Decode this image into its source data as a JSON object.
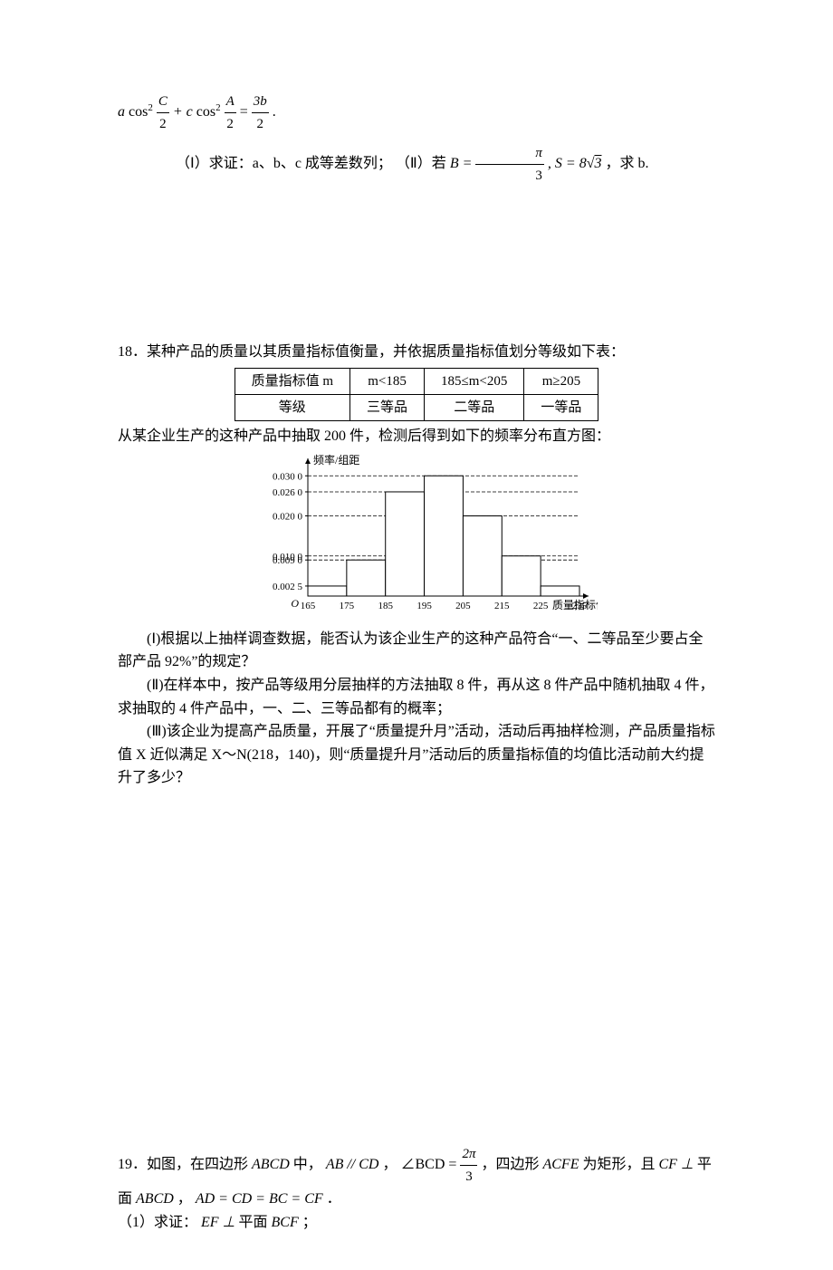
{
  "p17": {
    "formula_a": "a",
    "formula_cos2": "cos",
    "formula_sup": "2",
    "frac_C_num": "C",
    "frac_C_den": "2",
    "plus": " + c",
    "frac_A_num": "A",
    "frac_A_den": "2",
    "eq": " = ",
    "frac_3b_num": "3b",
    "frac_3b_den": "2",
    "period": " .",
    "part1": "（Ⅰ）求证：a、b、c 成等差数列；  （Ⅱ）若",
    "B_eq": " B = ",
    "pi_num": "π",
    "pi_den": "3",
    "S_eq": ", S = 8",
    "sqrt3": "3",
    "tail": " ，求 b."
  },
  "p18": {
    "stem": "18．某种产品的质量以其质量指标值衡量，并依据质量指标值划分等级如下表：",
    "table": {
      "r1c1": "质量指标值 m",
      "r1c2": "m<185",
      "r1c3": "185≤m<205",
      "r1c4": "m≥205",
      "r2c1": "等级",
      "r2c2": "三等品",
      "r2c3": "二等品",
      "r2c4": "一等品"
    },
    "line2": "从某企业生产的这种产品中抽取 200 件，检测后得到如下的频率分布直方图：",
    "hist": {
      "ylabel": "频率/组距",
      "yticks": [
        "0.030 0",
        "0.026 0",
        "0.020 0",
        "0.010 0",
        "0.009 0",
        "0.002 5"
      ],
      "ytick_vals": [
        0.03,
        0.026,
        0.02,
        0.01,
        0.009,
        0.0025
      ],
      "xticks": [
        "165",
        "175",
        "185",
        "195",
        "205",
        "215",
        "225",
        "235"
      ],
      "xlabel": "质量指标值",
      "origin": "O",
      "bars": [
        {
          "x": 165,
          "h": 0.0025,
          "color": "#ffffff",
          "border": "#000000"
        },
        {
          "x": 175,
          "h": 0.009,
          "color": "#ffffff",
          "border": "#000000"
        },
        {
          "x": 185,
          "h": 0.026,
          "color": "#ffffff",
          "border": "#000000"
        },
        {
          "x": 195,
          "h": 0.03,
          "color": "#ffffff",
          "border": "#000000"
        },
        {
          "x": 205,
          "h": 0.02,
          "color": "#ffffff",
          "border": "#000000"
        },
        {
          "x": 215,
          "h": 0.01,
          "color": "#ffffff",
          "border": "#000000"
        },
        {
          "x": 225,
          "h": 0.0025,
          "color": "#ffffff",
          "border": "#000000"
        }
      ],
      "ymax": 0.033,
      "grid_color": "#000000",
      "background": "#ffffff",
      "dash": "4,2"
    },
    "q1": "(Ⅰ)根据以上抽样调查数据，能否认为该企业生产的这种产品符合“一、二等品至少要占全部产品 92%”的规定？",
    "q2": "(Ⅱ)在样本中，按产品等级用分层抽样的方法抽取 8 件，再从这 8 件产品中随机抽取 4 件，求抽取的 4 件产品中，一、二、三等品都有的概率；",
    "q3": "(Ⅲ)该企业为提高产品质量，开展了“质量提升月”活动，活动后再抽样检测，产品质量指标值 X 近似满足 X～N(218，140)，则“质量提升月”活动后的质量指标值的均值比活动前大约提升了多少？"
  },
  "p19": {
    "stem_a": "19．如图，在四边形",
    "ABCD": " ABCD",
    "stem_b": " 中， ",
    "ABpar": "AB // CD",
    "stem_c": " ， ",
    "angle": "∠BCD = ",
    "frac_num": "2π",
    "frac_den": "3",
    "stem_d": " ，四边形 ",
    "ACFE": "ACFE",
    "stem_e": " 为矩形，且",
    "CFperp": " CF ⊥",
    "stem_f": "平",
    "line2a": "面 ",
    "line2b": "ABCD",
    "line2c": " ， ",
    "eq2": "AD = CD = BC = CF",
    "line2d": " ．",
    "q1a": "（1）求证：",
    "q1b": "EF ⊥",
    "q1c": "平面 ",
    "q1d": "BCF",
    "q1e": " ；"
  }
}
